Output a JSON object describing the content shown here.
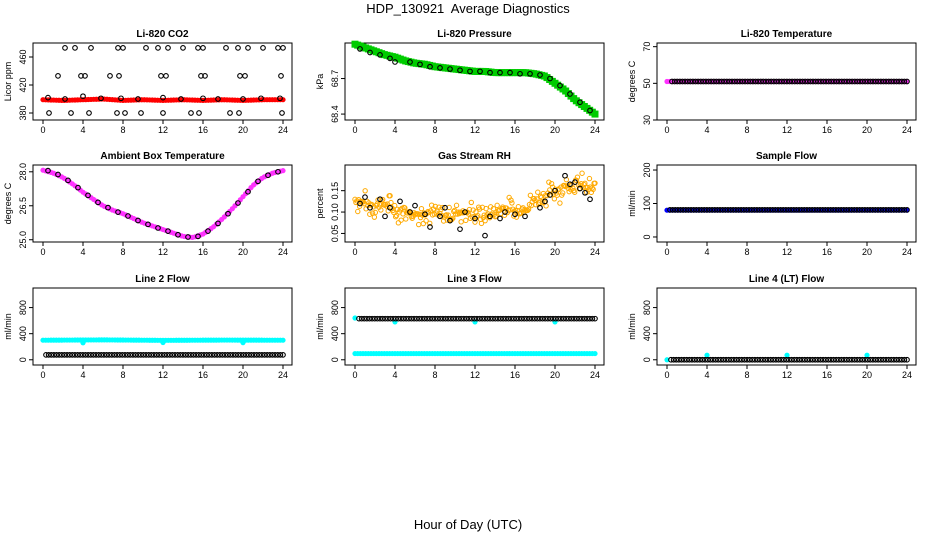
{
  "figure": {
    "title": "HDP_130921  Average Diagnostics",
    "xlabel": "Hour of Day (UTC)"
  },
  "chart_data": [
    {
      "type": "scatter",
      "title": "Li-820 CO2",
      "ylabel": "Licor ppm",
      "xlim": [
        0,
        24
      ],
      "ylim": [
        370,
        480
      ],
      "xticks": [
        "0",
        "4",
        "8",
        "12",
        "16",
        "20",
        "24"
      ],
      "yticks": [
        {
          "v": 380,
          "label": "380"
        },
        {
          "v": 420,
          "label": "420"
        },
        {
          "v": 460,
          "label": "460"
        }
      ],
      "series": [
        {
          "color": "#ff0000",
          "marker": "filled",
          "kind": "band",
          "x_start": 0,
          "x_end": 24,
          "values": [
            399,
            398,
            399,
            400,
            398,
            399,
            398,
            399,
            398,
            399,
            398,
            399,
            399
          ]
        },
        {
          "color": "#000000",
          "marker": "open",
          "x": [
            2.2,
            3.2,
            4.8,
            7.5,
            8.0,
            10.3,
            11.5,
            12.5,
            14.0,
            15.5,
            16.0,
            18.3,
            19.5,
            20.5,
            22.0,
            23.5,
            24.0
          ],
          "values": [
            473,
            473,
            473,
            473,
            473,
            473,
            473,
            473,
            473,
            473,
            473,
            473,
            473,
            473,
            473,
            473,
            473
          ]
        },
        {
          "color": "#000000",
          "marker": "open",
          "x": [
            1.5,
            3.8,
            4.2,
            6.7,
            7.6,
            11.8,
            12.3,
            15.8,
            16.2,
            19.7,
            20.2,
            23.8
          ],
          "values": [
            433,
            433,
            433,
            433,
            433,
            433,
            433,
            433,
            433,
            433,
            433,
            433
          ]
        },
        {
          "color": "#000000",
          "marker": "open",
          "x": [
            0.5,
            2.2,
            4.0,
            5.8,
            7.8,
            9.5,
            12.0,
            13.8,
            16.0,
            17.5,
            20.0,
            21.8,
            23.7
          ],
          "values": [
            402,
            400,
            404,
            401,
            401,
            400,
            402,
            400,
            401,
            400,
            400,
            401,
            401
          ]
        },
        {
          "color": "#000000",
          "marker": "open",
          "x": [
            0.6,
            2.8,
            4.6,
            7.4,
            8.2,
            9.8,
            12.0,
            14.8,
            15.6,
            18.7,
            19.6,
            23.9
          ],
          "values": [
            380,
            380,
            380,
            380,
            380,
            380,
            380,
            380,
            380,
            380,
            380,
            380
          ]
        }
      ]
    },
    {
      "type": "scatter",
      "title": "Li-820 Pressure",
      "ylabel": "kPa",
      "xlim": [
        0,
        24
      ],
      "ylim": [
        68.35,
        69.0
      ],
      "xticks": [
        "0",
        "4",
        "8",
        "12",
        "16",
        "20",
        "24"
      ],
      "yticks": [
        {
          "v": 68.4,
          "label": "68.4"
        },
        {
          "v": 68.7,
          "label": "68.7"
        }
      ],
      "series": [
        {
          "color": "#00cc00",
          "marker": "filled-square",
          "kind": "band",
          "x_start": 0,
          "x_end": 24,
          "values": [
            68.99,
            68.96,
            68.93,
            68.9,
            68.88,
            68.85,
            68.83,
            68.82,
            68.8,
            68.79,
            68.78,
            68.77,
            68.76,
            68.76,
            68.75,
            68.75,
            68.75,
            68.75,
            68.74,
            68.72,
            68.66,
            68.6,
            68.52,
            68.46,
            68.4
          ]
        },
        {
          "color": "#000000",
          "marker": "open",
          "x": [
            0.5,
            1.5,
            2.5,
            3.5,
            4.0,
            5.5,
            6.5,
            7.5,
            8.5,
            9.5,
            10.5,
            11.5,
            12.5,
            13.5,
            14.5,
            15.5,
            16.5,
            17.5,
            18.5,
            19.5,
            20.5,
            21.5,
            22.5,
            23.5
          ],
          "values": [
            68.95,
            68.92,
            68.9,
            68.87,
            68.84,
            68.84,
            68.82,
            68.8,
            68.79,
            68.78,
            68.77,
            68.76,
            68.76,
            68.75,
            68.75,
            68.75,
            68.74,
            68.74,
            68.73,
            68.7,
            68.64,
            68.57,
            68.5,
            68.43
          ]
        }
      ]
    },
    {
      "type": "scatter",
      "title": "Li-820 Temperature",
      "ylabel": "degrees C",
      "xlim": [
        0,
        24
      ],
      "ylim": [
        30,
        72
      ],
      "xticks": [
        "0",
        "4",
        "8",
        "12",
        "16",
        "20",
        "24"
      ],
      "yticks": [
        {
          "v": 30,
          "label": "30"
        },
        {
          "v": 50,
          "label": "50"
        },
        {
          "v": 70,
          "label": "70"
        }
      ],
      "series": [
        {
          "color": "#ff33ff",
          "marker": "filled",
          "kind": "band",
          "x_start": 0,
          "x_end": 24,
          "values": [
            51,
            51
          ]
        },
        {
          "color": "#000000",
          "marker": "open",
          "kind": "band",
          "x_start": 0.5,
          "x_end": 24,
          "values": [
            51,
            51
          ]
        }
      ]
    },
    {
      "type": "scatter",
      "title": "Ambient Box Temperature",
      "ylabel": "degrees C",
      "xlim": [
        0,
        24
      ],
      "ylim": [
        24.9,
        28.3
      ],
      "xticks": [
        "0",
        "4",
        "8",
        "12",
        "16",
        "20",
        "24"
      ],
      "yticks": [
        {
          "v": 25.0,
          "label": "25.0"
        },
        {
          "v": 26.5,
          "label": "26.5"
        },
        {
          "v": 28.0,
          "label": "28.0"
        }
      ],
      "series": [
        {
          "color": "#ff33ff",
          "marker": "filled",
          "kind": "band",
          "x_start": 0,
          "x_end": 24,
          "values": [
            28.07,
            27.95,
            27.75,
            27.45,
            27.1,
            26.8,
            26.5,
            26.3,
            26.15,
            25.95,
            25.75,
            25.6,
            25.45,
            25.3,
            25.15,
            25.1,
            25.25,
            25.55,
            25.95,
            26.4,
            26.9,
            27.4,
            27.75,
            27.95,
            28.05
          ]
        },
        {
          "color": "#000000",
          "marker": "open",
          "x": [
            0.5,
            1.5,
            2.5,
            3.5,
            4.5,
            5.5,
            6.5,
            7.5,
            8.5,
            9.5,
            10.5,
            11.5,
            12.5,
            13.5,
            14.5,
            15.5,
            16.5,
            17.5,
            18.5,
            19.5,
            20.5,
            21.5,
            22.5,
            23.5
          ],
          "values": [
            28.05,
            27.88,
            27.62,
            27.3,
            26.96,
            26.65,
            26.42,
            26.22,
            26.05,
            25.85,
            25.68,
            25.52,
            25.38,
            25.22,
            25.12,
            25.15,
            25.38,
            25.72,
            26.15,
            26.62,
            27.12,
            27.58,
            27.85,
            28.0
          ]
        }
      ]
    },
    {
      "type": "scatter",
      "title": "Gas Stream RH",
      "ylabel": "percent",
      "xlim": [
        0,
        24
      ],
      "ylim": [
        0.03,
        0.21
      ],
      "xticks": [
        "0",
        "4",
        "8",
        "12",
        "16",
        "20",
        "24"
      ],
      "yticks": [
        {
          "v": 0.05,
          "label": "0.05"
        },
        {
          "v": 0.1,
          "label": "0.10"
        },
        {
          "v": 0.15,
          "label": "0.15"
        }
      ],
      "series": [
        {
          "color": "#ffaa00",
          "marker": "open-cloud",
          "kind": "noisy-band",
          "x_start": 0,
          "x_end": 24,
          "spread": 0.035,
          "values": [
            0.13,
            0.12,
            0.115,
            0.12,
            0.105,
            0.1,
            0.095,
            0.1,
            0.095,
            0.09,
            0.1,
            0.1,
            0.095,
            0.09,
            0.1,
            0.11,
            0.1,
            0.11,
            0.13,
            0.14,
            0.15,
            0.16,
            0.165,
            0.16,
            0.15
          ]
        },
        {
          "color": "#000000",
          "marker": "open",
          "x": [
            0.5,
            1.0,
            1.5,
            2.5,
            3.0,
            3.5,
            4.5,
            5.5,
            6.0,
            7.0,
            7.5,
            8.5,
            9.0,
            9.5,
            10.5,
            11.0,
            12.0,
            13.0,
            13.5,
            14.5,
            15.0,
            16.0,
            17.0,
            18.5,
            19.0,
            19.5,
            20.0,
            21.0,
            21.5,
            22.0,
            22.5,
            23.0,
            23.5
          ],
          "values": [
            0.12,
            0.135,
            0.11,
            0.13,
            0.09,
            0.11,
            0.125,
            0.1,
            0.115,
            0.095,
            0.065,
            0.09,
            0.11,
            0.08,
            0.06,
            0.1,
            0.085,
            0.045,
            0.09,
            0.085,
            0.1,
            0.095,
            0.09,
            0.11,
            0.125,
            0.14,
            0.15,
            0.185,
            0.165,
            0.17,
            0.155,
            0.145,
            0.13
          ]
        }
      ]
    },
    {
      "type": "scatter",
      "title": "Sample Flow",
      "ylabel": "ml/min",
      "xlim": [
        0,
        24
      ],
      "ylim": [
        -15,
        215
      ],
      "xticks": [
        "0",
        "4",
        "8",
        "12",
        "16",
        "20",
        "24"
      ],
      "yticks": [
        {
          "v": 0,
          "label": "0"
        },
        {
          "v": 100,
          "label": "100"
        },
        {
          "v": 200,
          "label": "200"
        }
      ],
      "series": [
        {
          "color": "#0000ff",
          "marker": "filled",
          "kind": "band",
          "x_start": 0,
          "x_end": 24,
          "values": [
            80,
            80
          ]
        },
        {
          "color": "#000000",
          "marker": "open",
          "kind": "band",
          "x_start": 0.3,
          "x_end": 24,
          "values": [
            81,
            81
          ]
        }
      ]
    },
    {
      "type": "scatter",
      "title": "Line 2 Flow",
      "ylabel": "ml/min",
      "xlim": [
        0,
        24
      ],
      "ylim": [
        -80,
        1100
      ],
      "xticks": [
        "0",
        "4",
        "8",
        "12",
        "16",
        "20",
        "24"
      ],
      "yticks": [
        {
          "v": 0,
          "label": "0"
        },
        {
          "v": 400,
          "label": "400"
        },
        {
          "v": 800,
          "label": "800"
        }
      ],
      "series": [
        {
          "color": "#00ffff",
          "marker": "filled",
          "kind": "band",
          "x_start": 0,
          "x_end": 24,
          "values": [
            300,
            305,
            298,
            302,
            300
          ]
        },
        {
          "color": "#00ffff",
          "marker": "filled",
          "x": [
            4.0,
            12.0,
            20.0
          ],
          "values": [
            260,
            265,
            262
          ]
        },
        {
          "color": "#000000",
          "marker": "open",
          "kind": "band",
          "x_start": 0.3,
          "x_end": 24,
          "values": [
            75,
            75
          ]
        }
      ]
    },
    {
      "type": "scatter",
      "title": "Line 3 Flow",
      "ylabel": "ml/min",
      "xlim": [
        0,
        24
      ],
      "ylim": [
        -80,
        1100
      ],
      "xticks": [
        "0",
        "4",
        "8",
        "12",
        "16",
        "20",
        "24"
      ],
      "yticks": [
        {
          "v": 0,
          "label": "0"
        },
        {
          "v": 400,
          "label": "400"
        },
        {
          "v": 800,
          "label": "800"
        }
      ],
      "series": [
        {
          "color": "#00ffff",
          "marker": "filled",
          "kind": "band",
          "x_start": 0,
          "x_end": 24,
          "values": [
            95,
            95
          ]
        },
        {
          "color": "#00ffff",
          "marker": "filled",
          "x": [
            0.0,
            4.0,
            12.0,
            20.0
          ],
          "values": [
            640,
            580,
            580,
            580
          ]
        },
        {
          "color": "#000000",
          "marker": "open",
          "kind": "band",
          "x_start": 0.4,
          "x_end": 24,
          "values": [
            630,
            630
          ]
        }
      ]
    },
    {
      "type": "scatter",
      "title": "Line 4 (LT) Flow",
      "ylabel": "ml/min",
      "xlim": [
        0,
        24
      ],
      "ylim": [
        -80,
        1100
      ],
      "xticks": [
        "0",
        "4",
        "8",
        "12",
        "16",
        "20",
        "24"
      ],
      "yticks": [
        {
          "v": 0,
          "label": "0"
        },
        {
          "v": 400,
          "label": "400"
        },
        {
          "v": 800,
          "label": "800"
        }
      ],
      "series": [
        {
          "color": "#00ffff",
          "marker": "filled",
          "x": [
            0.0,
            4.0,
            12.0,
            20.0
          ],
          "values": [
            0,
            70,
            70,
            70
          ]
        },
        {
          "color": "#000000",
          "marker": "open",
          "kind": "band",
          "x_start": 0.4,
          "x_end": 24,
          "values": [
            0,
            0
          ]
        }
      ]
    }
  ]
}
